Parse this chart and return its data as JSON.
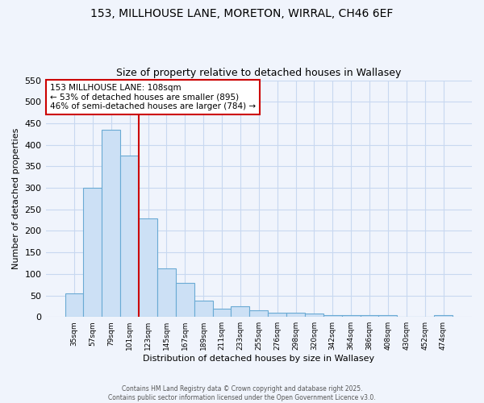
{
  "title_line1": "153, MILLHOUSE LANE, MORETON, WIRRAL, CH46 6EF",
  "title_line2": "Size of property relative to detached houses in Wallasey",
  "xlabel": "Distribution of detached houses by size in Wallasey",
  "ylabel": "Number of detached properties",
  "bar_labels": [
    "35sqm",
    "57sqm",
    "79sqm",
    "101sqm",
    "123sqm",
    "145sqm",
    "167sqm",
    "189sqm",
    "211sqm",
    "233sqm",
    "255sqm",
    "276sqm",
    "298sqm",
    "320sqm",
    "342sqm",
    "364sqm",
    "386sqm",
    "408sqm",
    "430sqm",
    "452sqm",
    "474sqm"
  ],
  "bar_values": [
    55,
    300,
    435,
    375,
    228,
    113,
    79,
    37,
    20,
    25,
    15,
    9,
    9,
    7,
    5,
    4,
    4,
    4,
    1,
    1,
    4
  ],
  "bar_color": "#cce0f5",
  "bar_edge_color": "#6aaad4",
  "background_color": "#f0f4fc",
  "plot_bg_color": "#f0f4fc",
  "grid_color": "#c8d8f0",
  "red_line_x": 3.5,
  "annotation_text": "153 MILLHOUSE LANE: 108sqm\n← 53% of detached houses are smaller (895)\n46% of semi-detached houses are larger (784) →",
  "annotation_box_color": "#ffffff",
  "annotation_box_edge": "#cc0000",
  "ylim": [
    0,
    550
  ],
  "yticks": [
    0,
    50,
    100,
    150,
    200,
    250,
    300,
    350,
    400,
    450,
    500,
    550
  ],
  "footer_line1": "Contains HM Land Registry data © Crown copyright and database right 2025.",
  "footer_line2": "Contains public sector information licensed under the Open Government Licence v3.0."
}
